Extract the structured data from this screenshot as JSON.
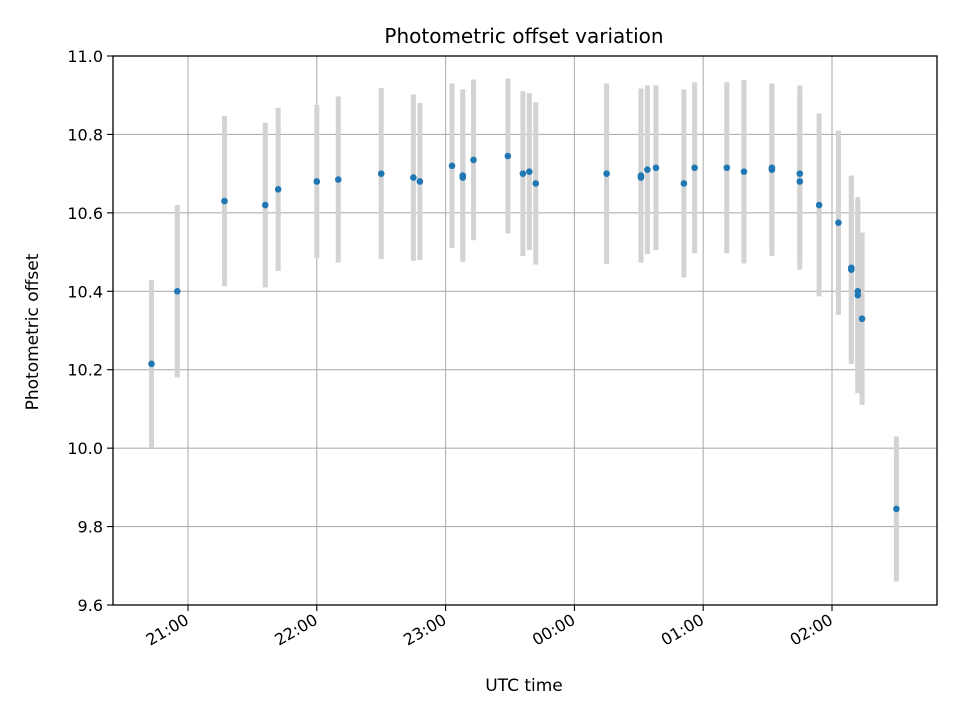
{
  "chart_data": {
    "type": "scatter",
    "title": "Photometric offset variation",
    "xlabel": "UTC time",
    "ylabel": "Photometric offset",
    "x_axis": "time",
    "x_tick_labels": [
      "21:00",
      "22:00",
      "23:00",
      "00:00",
      "01:00",
      "02:00"
    ],
    "y_tick_labels": [
      "9.6",
      "9.8",
      "10.0",
      "10.2",
      "10.4",
      "10.6",
      "10.8",
      "11.0"
    ],
    "ylim": [
      9.6,
      11.0
    ],
    "grid": true,
    "legend": "none",
    "colors": {
      "point": "#1f77b4",
      "errorbar": "#d3d3d3",
      "grid": "#b0b0b0"
    },
    "points": [
      {
        "time": "20:43",
        "y": 10.215,
        "err": 0.213
      },
      {
        "time": "20:55",
        "y": 10.4,
        "err": 0.22
      },
      {
        "time": "21:17",
        "y": 10.63,
        "err": 0.217
      },
      {
        "time": "21:36",
        "y": 10.62,
        "err": 0.21
      },
      {
        "time": "21:42",
        "y": 10.66,
        "err": 0.208
      },
      {
        "time": "22:00",
        "y": 10.68,
        "err": 0.195
      },
      {
        "time": "22:10",
        "y": 10.685,
        "err": 0.212
      },
      {
        "time": "22:30",
        "y": 10.7,
        "err": 0.218
      },
      {
        "time": "22:45",
        "y": 10.69,
        "err": 0.212
      },
      {
        "time": "22:48",
        "y": 10.68,
        "err": 0.2
      },
      {
        "time": "23:03",
        "y": 10.72,
        "err": 0.21
      },
      {
        "time": "23:08",
        "y": 10.695,
        "err": 0.22
      },
      {
        "time": "23:08",
        "y": 10.69,
        "err": 0.21
      },
      {
        "time": "23:13",
        "y": 10.735,
        "err": 0.205
      },
      {
        "time": "23:29",
        "y": 10.745,
        "err": 0.198
      },
      {
        "time": "23:36",
        "y": 10.7,
        "err": 0.21
      },
      {
        "time": "23:39",
        "y": 10.705,
        "err": 0.2
      },
      {
        "time": "23:42",
        "y": 10.675,
        "err": 0.207
      },
      {
        "time": "00:15",
        "y": 10.7,
        "err": 0.23
      },
      {
        "time": "00:31",
        "y": 10.69,
        "err": 0.2
      },
      {
        "time": "00:31",
        "y": 10.695,
        "err": 0.222
      },
      {
        "time": "00:34",
        "y": 10.71,
        "err": 0.215
      },
      {
        "time": "00:38",
        "y": 10.715,
        "err": 0.21
      },
      {
        "time": "00:51",
        "y": 10.675,
        "err": 0.24
      },
      {
        "time": "00:56",
        "y": 10.715,
        "err": 0.218
      },
      {
        "time": "01:11",
        "y": 10.715,
        "err": 0.218
      },
      {
        "time": "01:19",
        "y": 10.705,
        "err": 0.234
      },
      {
        "time": "01:32",
        "y": 10.71,
        "err": 0.22
      },
      {
        "time": "01:32",
        "y": 10.715,
        "err": 0.21
      },
      {
        "time": "01:45",
        "y": 10.7,
        "err": 0.225
      },
      {
        "time": "01:45",
        "y": 10.68,
        "err": 0.225
      },
      {
        "time": "01:54",
        "y": 10.62,
        "err": 0.233
      },
      {
        "time": "02:03",
        "y": 10.575,
        "err": 0.235
      },
      {
        "time": "02:09",
        "y": 10.46,
        "err": 0.235
      },
      {
        "time": "02:09",
        "y": 10.455,
        "err": 0.24
      },
      {
        "time": "02:12",
        "y": 10.4,
        "err": 0.23
      },
      {
        "time": "02:12",
        "y": 10.39,
        "err": 0.25
      },
      {
        "time": "02:14",
        "y": 10.33,
        "err": 0.22
      },
      {
        "time": "02:30",
        "y": 9.845,
        "err": 0.185
      }
    ]
  }
}
